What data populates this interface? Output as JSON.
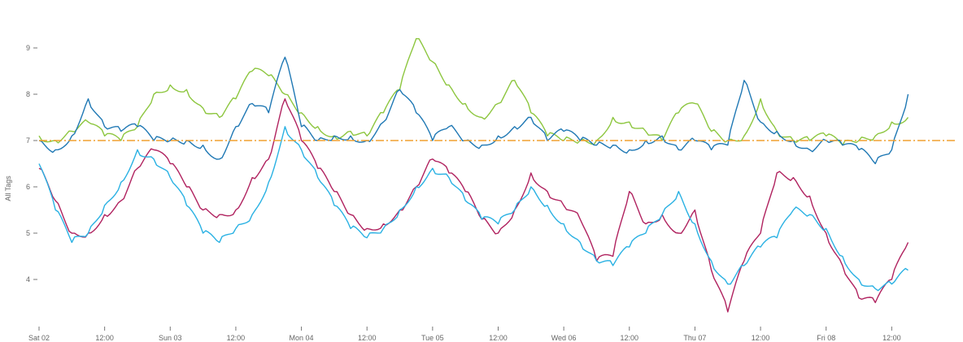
{
  "chart_data": {
    "type": "line",
    "title": "",
    "xlabel": "",
    "ylabel": "All Tags",
    "ylim": [
      3,
      9.9
    ],
    "xlim": [
      "2024-03-02 00:00",
      "2024-03-09 00:00"
    ],
    "grid": false,
    "legend": "none",
    "x_tick_labels": [
      "Sat 02",
      "12:00",
      "Sun 03",
      "12:00",
      "Mon 04",
      "12:00",
      "Tue 05",
      "12:00",
      "Wed 06",
      "12:00",
      "Thu 07",
      "12:00",
      "Fri 08",
      "12:00"
    ],
    "y_tick_labels": [
      "4",
      "5",
      "6",
      "7",
      "8",
      "9"
    ],
    "reference_line": {
      "y": 7,
      "color": "#f0a030",
      "style": "dash-dot"
    },
    "series": [
      {
        "color": "#8dc63f",
        "points": [
          [
            "2024-03-02 00:00",
            7.1
          ],
          [
            "2024-03-02 03:00",
            7.0
          ],
          [
            "2024-03-02 06:00",
            7.2
          ],
          [
            "2024-03-02 09:00",
            7.4
          ],
          [
            "2024-03-02 12:00",
            7.1
          ],
          [
            "2024-03-02 15:00",
            7.0
          ],
          [
            "2024-03-02 18:00",
            7.3
          ],
          [
            "2024-03-02 21:00",
            8.0
          ],
          [
            "2024-03-03 00:00",
            8.2
          ],
          [
            "2024-03-03 03:00",
            8.1
          ],
          [
            "2024-03-03 06:00",
            7.7
          ],
          [
            "2024-03-03 09:00",
            7.5
          ],
          [
            "2024-03-03 12:00",
            7.9
          ],
          [
            "2024-03-03 15:00",
            8.5
          ],
          [
            "2024-03-03 18:00",
            8.4
          ],
          [
            "2024-03-03 21:00",
            8.0
          ],
          [
            "2024-03-04 00:00",
            7.6
          ],
          [
            "2024-03-04 03:00",
            7.3
          ],
          [
            "2024-03-04 06:00",
            7.1
          ],
          [
            "2024-03-04 09:00",
            7.2
          ],
          [
            "2024-03-04 12:00",
            7.1
          ],
          [
            "2024-03-04 15:00",
            7.6
          ],
          [
            "2024-03-04 18:00",
            8.1
          ],
          [
            "2024-03-04 21:00",
            9.2
          ],
          [
            "2024-03-05 00:00",
            8.7
          ],
          [
            "2024-03-05 03:00",
            8.2
          ],
          [
            "2024-03-05 06:00",
            7.8
          ],
          [
            "2024-03-05 09:00",
            7.5
          ],
          [
            "2024-03-05 12:00",
            7.8
          ],
          [
            "2024-03-05 15:00",
            8.3
          ],
          [
            "2024-03-05 18:00",
            7.6
          ],
          [
            "2024-03-05 21:00",
            7.1
          ],
          [
            "2024-03-06 00:00",
            7.0
          ],
          [
            "2024-03-06 03:00",
            7.0
          ],
          [
            "2024-03-06 06:00",
            7.0
          ],
          [
            "2024-03-06 09:00",
            7.5
          ],
          [
            "2024-03-06 12:00",
            7.4
          ],
          [
            "2024-03-06 15:00",
            7.2
          ],
          [
            "2024-03-06 18:00",
            7.0
          ],
          [
            "2024-03-06 21:00",
            7.6
          ],
          [
            "2024-03-07 00:00",
            7.8
          ],
          [
            "2024-03-07 03:00",
            7.2
          ],
          [
            "2024-03-07 06:00",
            7.0
          ],
          [
            "2024-03-07 09:00",
            7.1
          ],
          [
            "2024-03-07 12:00",
            7.9
          ],
          [
            "2024-03-07 15:00",
            7.2
          ],
          [
            "2024-03-07 18:00",
            7.0
          ],
          [
            "2024-03-07 21:00",
            7.0
          ],
          [
            "2024-03-08 00:00",
            7.1
          ],
          [
            "2024-03-08 03:00",
            6.9
          ],
          [
            "2024-03-08 06:00",
            7.0
          ],
          [
            "2024-03-08 09:00",
            7.1
          ],
          [
            "2024-03-08 12:00",
            7.4
          ],
          [
            "2024-03-08 15:00",
            7.5
          ]
        ]
      },
      {
        "color": "#1f78b4",
        "points": [
          [
            "2024-03-02 00:00",
            7.0
          ],
          [
            "2024-03-02 03:00",
            6.8
          ],
          [
            "2024-03-02 06:00",
            7.1
          ],
          [
            "2024-03-02 09:00",
            7.9
          ],
          [
            "2024-03-02 12:00",
            7.3
          ],
          [
            "2024-03-02 15:00",
            7.2
          ],
          [
            "2024-03-02 18:00",
            7.3
          ],
          [
            "2024-03-02 21:00",
            7.0
          ],
          [
            "2024-03-03 00:00",
            7.0
          ],
          [
            "2024-03-03 03:00",
            7.0
          ],
          [
            "2024-03-03 06:00",
            6.9
          ],
          [
            "2024-03-03 09:00",
            6.6
          ],
          [
            "2024-03-03 12:00",
            7.3
          ],
          [
            "2024-03-03 15:00",
            7.8
          ],
          [
            "2024-03-03 18:00",
            7.6
          ],
          [
            "2024-03-03 21:00",
            8.8
          ],
          [
            "2024-03-04 00:00",
            7.3
          ],
          [
            "2024-03-04 03:00",
            7.0
          ],
          [
            "2024-03-04 06:00",
            7.1
          ],
          [
            "2024-03-04 09:00",
            7.1
          ],
          [
            "2024-03-04 12:00",
            7.0
          ],
          [
            "2024-03-04 15:00",
            7.4
          ],
          [
            "2024-03-04 18:00",
            8.1
          ],
          [
            "2024-03-04 21:00",
            7.6
          ],
          [
            "2024-03-05 00:00",
            7.0
          ],
          [
            "2024-03-05 03:00",
            7.3
          ],
          [
            "2024-03-05 06:00",
            7.0
          ],
          [
            "2024-03-05 09:00",
            6.9
          ],
          [
            "2024-03-05 12:00",
            7.1
          ],
          [
            "2024-03-05 15:00",
            7.3
          ],
          [
            "2024-03-05 18:00",
            7.5
          ],
          [
            "2024-03-05 21:00",
            7.0
          ],
          [
            "2024-03-06 00:00",
            7.2
          ],
          [
            "2024-03-06 03:00",
            7.0
          ],
          [
            "2024-03-06 06:00",
            6.9
          ],
          [
            "2024-03-06 09:00",
            6.9
          ],
          [
            "2024-03-06 12:00",
            6.8
          ],
          [
            "2024-03-06 15:00",
            7.0
          ],
          [
            "2024-03-06 18:00",
            7.1
          ],
          [
            "2024-03-06 21:00",
            6.8
          ],
          [
            "2024-03-07 00:00",
            7.0
          ],
          [
            "2024-03-07 03:00",
            6.8
          ],
          [
            "2024-03-07 06:00",
            6.9
          ],
          [
            "2024-03-07 09:00",
            8.3
          ],
          [
            "2024-03-07 12:00",
            7.4
          ],
          [
            "2024-03-07 15:00",
            7.2
          ],
          [
            "2024-03-07 18:00",
            7.0
          ],
          [
            "2024-03-07 21:00",
            6.8
          ],
          [
            "2024-03-08 00:00",
            7.0
          ],
          [
            "2024-03-08 03:00",
            6.9
          ],
          [
            "2024-03-08 06:00",
            6.8
          ],
          [
            "2024-03-08 09:00",
            6.5
          ],
          [
            "2024-03-08 12:00",
            6.8
          ],
          [
            "2024-03-08 15:00",
            8.0
          ]
        ]
      },
      {
        "color": "#b0225f",
        "points": [
          [
            "2024-03-02 00:00",
            6.4
          ],
          [
            "2024-03-02 03:00",
            5.7
          ],
          [
            "2024-03-02 06:00",
            5.0
          ],
          [
            "2024-03-02 09:00",
            5.0
          ],
          [
            "2024-03-02 12:00",
            5.4
          ],
          [
            "2024-03-02 15:00",
            5.7
          ],
          [
            "2024-03-02 18:00",
            6.4
          ],
          [
            "2024-03-02 21:00",
            6.8
          ],
          [
            "2024-03-03 00:00",
            6.5
          ],
          [
            "2024-03-03 03:00",
            6.0
          ],
          [
            "2024-03-03 06:00",
            5.5
          ],
          [
            "2024-03-03 09:00",
            5.4
          ],
          [
            "2024-03-03 12:00",
            5.5
          ],
          [
            "2024-03-03 15:00",
            6.2
          ],
          [
            "2024-03-03 18:00",
            6.6
          ],
          [
            "2024-03-03 21:00",
            7.9
          ],
          [
            "2024-03-04 00:00",
            7.0
          ],
          [
            "2024-03-04 03:00",
            6.4
          ],
          [
            "2024-03-04 06:00",
            5.9
          ],
          [
            "2024-03-04 09:00",
            5.4
          ],
          [
            "2024-03-04 12:00",
            5.1
          ],
          [
            "2024-03-04 15:00",
            5.2
          ],
          [
            "2024-03-04 18:00",
            5.5
          ],
          [
            "2024-03-04 21:00",
            6.0
          ],
          [
            "2024-03-05 00:00",
            6.6
          ],
          [
            "2024-03-05 03:00",
            6.3
          ],
          [
            "2024-03-05 06:00",
            5.9
          ],
          [
            "2024-03-05 09:00",
            5.3
          ],
          [
            "2024-03-05 12:00",
            5.0
          ],
          [
            "2024-03-05 15:00",
            5.5
          ],
          [
            "2024-03-05 18:00",
            6.3
          ],
          [
            "2024-03-05 21:00",
            5.9
          ],
          [
            "2024-03-06 00:00",
            5.6
          ],
          [
            "2024-03-06 03:00",
            5.3
          ],
          [
            "2024-03-06 06:00",
            4.4
          ],
          [
            "2024-03-06 09:00",
            4.5
          ],
          [
            "2024-03-06 12:00",
            5.9
          ],
          [
            "2024-03-06 15:00",
            5.2
          ],
          [
            "2024-03-06 18:00",
            5.4
          ],
          [
            "2024-03-06 21:00",
            5.0
          ],
          [
            "2024-03-07 00:00",
            5.5
          ],
          [
            "2024-03-07 03:00",
            4.2
          ],
          [
            "2024-03-07 06:00",
            3.3
          ],
          [
            "2024-03-07 09:00",
            4.4
          ],
          [
            "2024-03-07 12:00",
            5.0
          ],
          [
            "2024-03-07 15:00",
            6.3
          ],
          [
            "2024-03-07 18:00",
            6.2
          ],
          [
            "2024-03-07 21:00",
            5.8
          ],
          [
            "2024-03-08 00:00",
            5.0
          ],
          [
            "2024-03-08 03:00",
            4.3
          ],
          [
            "2024-03-08 06:00",
            3.6
          ],
          [
            "2024-03-08 09:00",
            3.5
          ],
          [
            "2024-03-08 12:00",
            4.0
          ],
          [
            "2024-03-08 15:00",
            4.8
          ]
        ]
      },
      {
        "color": "#29b1e3",
        "points": [
          [
            "2024-03-02 00:00",
            6.5
          ],
          [
            "2024-03-02 03:00",
            5.5
          ],
          [
            "2024-03-02 06:00",
            4.8
          ],
          [
            "2024-03-02 09:00",
            5.0
          ],
          [
            "2024-03-02 12:00",
            5.6
          ],
          [
            "2024-03-02 15:00",
            6.1
          ],
          [
            "2024-03-02 18:00",
            6.8
          ],
          [
            "2024-03-02 21:00",
            6.6
          ],
          [
            "2024-03-03 00:00",
            6.2
          ],
          [
            "2024-03-03 03:00",
            5.6
          ],
          [
            "2024-03-03 06:00",
            5.0
          ],
          [
            "2024-03-03 09:00",
            4.8
          ],
          [
            "2024-03-03 12:00",
            5.1
          ],
          [
            "2024-03-03 15:00",
            5.4
          ],
          [
            "2024-03-03 18:00",
            6.1
          ],
          [
            "2024-03-03 21:00",
            7.3
          ],
          [
            "2024-03-04 00:00",
            6.8
          ],
          [
            "2024-03-04 03:00",
            6.2
          ],
          [
            "2024-03-04 06:00",
            5.6
          ],
          [
            "2024-03-04 09:00",
            5.1
          ],
          [
            "2024-03-04 12:00",
            4.9
          ],
          [
            "2024-03-04 15:00",
            5.1
          ],
          [
            "2024-03-04 18:00",
            5.5
          ],
          [
            "2024-03-04 21:00",
            6.0
          ],
          [
            "2024-03-05 00:00",
            6.4
          ],
          [
            "2024-03-05 03:00",
            6.2
          ],
          [
            "2024-03-05 06:00",
            5.7
          ],
          [
            "2024-03-05 09:00",
            5.3
          ],
          [
            "2024-03-05 12:00",
            5.2
          ],
          [
            "2024-03-05 15:00",
            5.5
          ],
          [
            "2024-03-05 18:00",
            6.0
          ],
          [
            "2024-03-05 21:00",
            5.6
          ],
          [
            "2024-03-06 00:00",
            5.2
          ],
          [
            "2024-03-06 03:00",
            4.8
          ],
          [
            "2024-03-06 06:00",
            4.4
          ],
          [
            "2024-03-06 09:00",
            4.3
          ],
          [
            "2024-03-06 12:00",
            4.7
          ],
          [
            "2024-03-06 15:00",
            5.0
          ],
          [
            "2024-03-06 18:00",
            5.4
          ],
          [
            "2024-03-06 21:00",
            5.9
          ],
          [
            "2024-03-07 00:00",
            5.2
          ],
          [
            "2024-03-07 03:00",
            4.4
          ],
          [
            "2024-03-07 06:00",
            3.9
          ],
          [
            "2024-03-07 09:00",
            4.3
          ],
          [
            "2024-03-07 12:00",
            4.7
          ],
          [
            "2024-03-07 15:00",
            4.9
          ],
          [
            "2024-03-07 18:00",
            5.5
          ],
          [
            "2024-03-07 21:00",
            5.4
          ],
          [
            "2024-03-08 00:00",
            5.1
          ],
          [
            "2024-03-08 03:00",
            4.5
          ],
          [
            "2024-03-08 06:00",
            4.0
          ],
          [
            "2024-03-08 09:00",
            3.8
          ],
          [
            "2024-03-08 12:00",
            3.9
          ],
          [
            "2024-03-08 15:00",
            4.2
          ]
        ]
      }
    ]
  }
}
